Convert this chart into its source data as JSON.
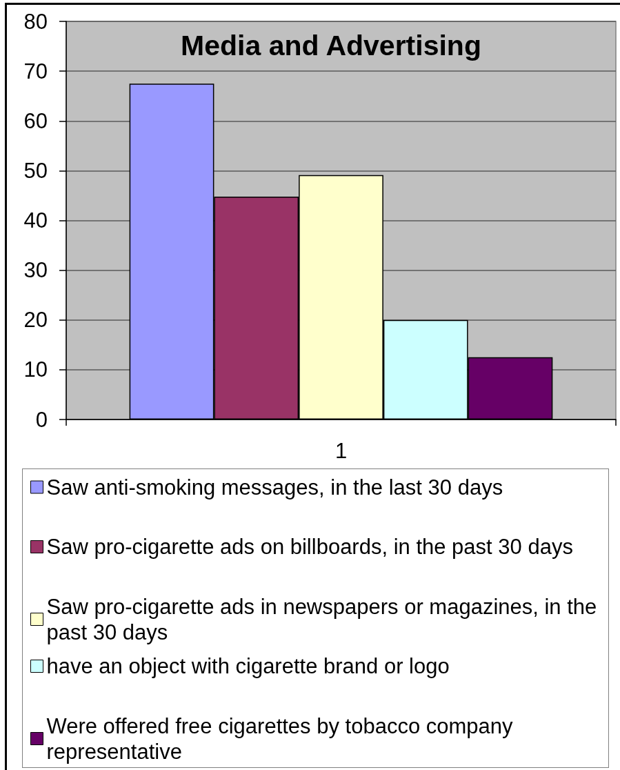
{
  "chart_data": {
    "type": "bar",
    "title": "Media and Advertising",
    "categories": [
      "1"
    ],
    "series": [
      {
        "name": "Saw anti-smoking messages, in the last 30 days",
        "color": "#9999ff",
        "values": [
          67.5
        ]
      },
      {
        "name": "Saw pro-cigarette ads on billboards, in the past 30 days",
        "color": "#993366",
        "values": [
          44.8
        ]
      },
      {
        "name": "Saw pro-cigarette ads in newspapers or magazines, in the past 30 days",
        "color": "#ffffcc",
        "values": [
          49.1
        ]
      },
      {
        "name": "have an object with cigarette brand or logo",
        "color": "#ccffff",
        "values": [
          20.0
        ]
      },
      {
        "name": "Were offered free cigarettes by tobacco company representative",
        "color": "#660066",
        "values": [
          12.5
        ]
      }
    ],
    "ylim": [
      0,
      80
    ],
    "yticks": [
      0,
      10,
      20,
      30,
      40,
      50,
      60,
      70,
      80
    ],
    "grid": "y",
    "legend": "bottom"
  }
}
